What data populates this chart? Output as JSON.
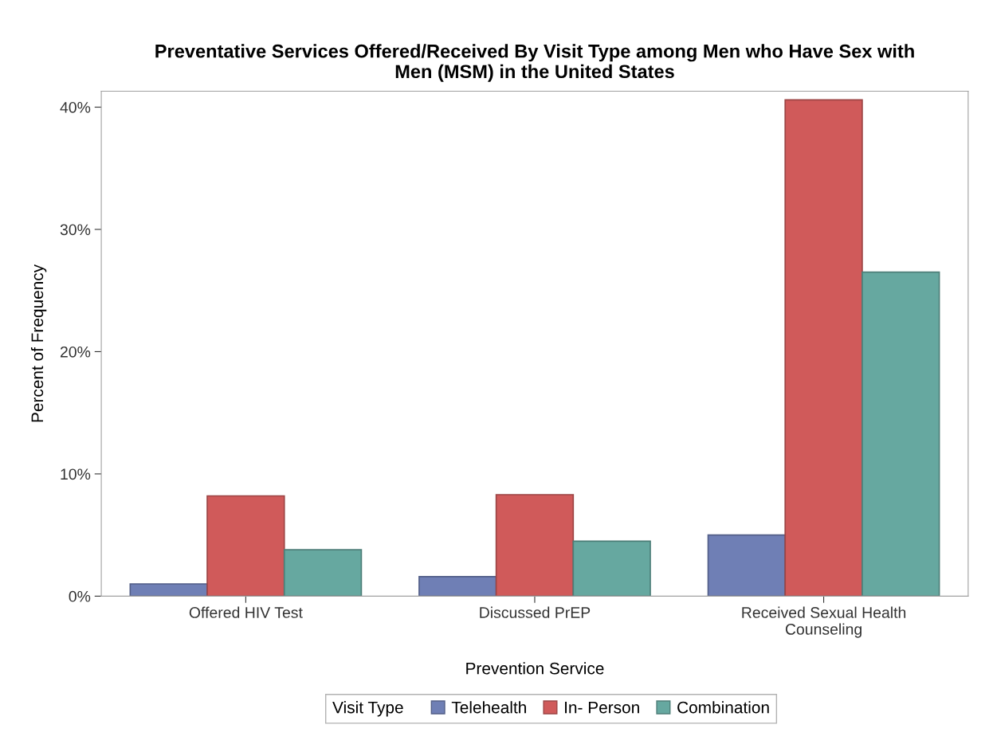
{
  "chart_data": {
    "type": "bar",
    "title": "Preventative Services Offered/Received By Visit Type among Men who Have Sex with\nMen (MSM) in the United States",
    "xlabel": "Prevention Service",
    "ylabel": "Percent of Frequency",
    "legend_title": "Visit Type",
    "categories": [
      "Offered HIV Test",
      "Discussed PrEP",
      "Received Sexual Health\nCounseling"
    ],
    "series": [
      {
        "name": "Telehealth",
        "color": "#6f7fb5",
        "values": [
          1.0,
          1.6,
          5.0
        ]
      },
      {
        "name": "In- Person",
        "color": "#d05a5a",
        "values": [
          8.2,
          8.3,
          40.6
        ]
      },
      {
        "name": "Combination",
        "color": "#66a8a0",
        "values": [
          3.8,
          4.5,
          26.5
        ]
      }
    ],
    "ylim": [
      0,
      41.3
    ],
    "yticks": [
      {
        "value": 0,
        "label": "0%"
      },
      {
        "value": 10,
        "label": "10%"
      },
      {
        "value": 20,
        "label": "20%"
      },
      {
        "value": 30,
        "label": "30%"
      },
      {
        "value": 40,
        "label": "40%"
      }
    ],
    "grid": false,
    "legend": "bottom"
  }
}
